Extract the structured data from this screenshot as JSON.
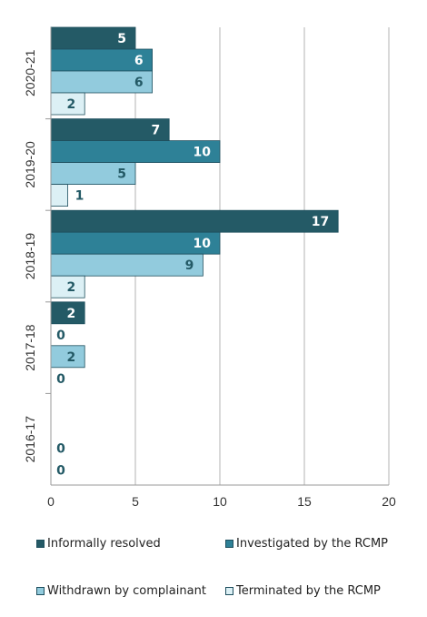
{
  "chart_data": {
    "type": "bar",
    "orientation": "horizontal",
    "categories": [
      "2020-21",
      "2019-20",
      "2018-19",
      "2017-18",
      "2016-17"
    ],
    "series": [
      {
        "name": "Informally resolved",
        "color": "#245a66",
        "values": [
          5,
          7,
          17,
          2,
          null
        ]
      },
      {
        "name": "Investigated by the RCMP",
        "color": "#2e8197",
        "values": [
          6,
          10,
          10,
          0,
          null
        ]
      },
      {
        "name": "Withdrawn by complainant",
        "color": "#92cbdd",
        "values": [
          6,
          5,
          9,
          2,
          0
        ]
      },
      {
        "name": "Terminated by the RCMP",
        "color": "#dcf0f5",
        "values": [
          2,
          1,
          2,
          0,
          0
        ]
      }
    ],
    "xlim": [
      0,
      20
    ],
    "xticks": [
      "0",
      "5",
      "10",
      "15",
      "20"
    ],
    "grid": true,
    "legend_position": "bottom"
  }
}
